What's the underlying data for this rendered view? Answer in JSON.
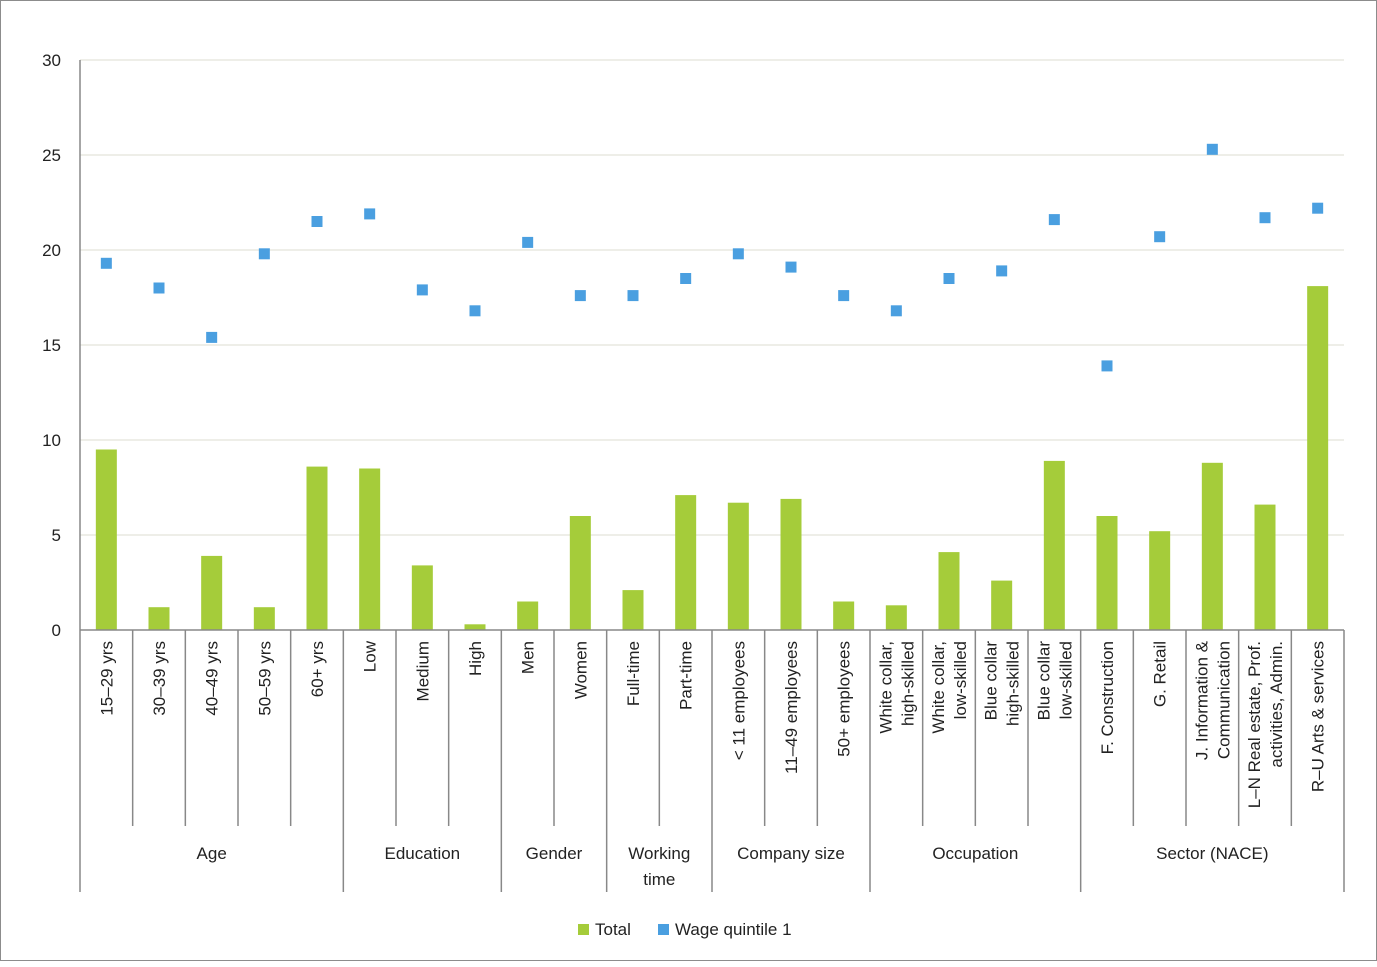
{
  "chart_data": {
    "type": "bar",
    "title": "",
    "xlabel": "",
    "ylabel": "",
    "ylim": [
      0,
      30
    ],
    "yticks": [
      0,
      5,
      10,
      15,
      20,
      25,
      30
    ],
    "grid": true,
    "legend_position": "bottom",
    "categories": [
      [
        "15–29 yrs"
      ],
      [
        "30–39 yrs"
      ],
      [
        "40–49 yrs"
      ],
      [
        "50–59 yrs"
      ],
      [
        "60+ yrs"
      ],
      [
        "Low"
      ],
      [
        "Medium"
      ],
      [
        "High"
      ],
      [
        "Men"
      ],
      [
        "Women"
      ],
      [
        "Full-time"
      ],
      [
        "Part-time"
      ],
      [
        "< 11 employees"
      ],
      [
        "11–49 employees"
      ],
      [
        "50+ employees"
      ],
      [
        "White collar,",
        "high-skilled"
      ],
      [
        "White collar,",
        "low-skilled"
      ],
      [
        "Blue collar",
        "high-skilled"
      ],
      [
        "Blue collar",
        "low-skilled"
      ],
      [
        "F. Construction"
      ],
      [
        "G. Retail"
      ],
      [
        "J. Information &",
        "Communication"
      ],
      [
        "L–N Real estate, Prof.",
        "activities, Admin."
      ],
      [
        "R–U Arts & services"
      ]
    ],
    "groups": [
      {
        "label": [
          "Age"
        ],
        "count": 5
      },
      {
        "label": [
          "Education"
        ],
        "count": 3
      },
      {
        "label": [
          "Gender"
        ],
        "count": 2
      },
      {
        "label": [
          "Working",
          "time"
        ],
        "count": 2
      },
      {
        "label": [
          "Company size"
        ],
        "count": 3
      },
      {
        "label": [
          "Occupation"
        ],
        "count": 4
      },
      {
        "label": [
          "Sector (NACE)"
        ],
        "count": 5
      }
    ],
    "series": [
      {
        "name": "Total",
        "kind": "bar",
        "color": "#a5cc3a",
        "values": [
          9.5,
          1.2,
          3.9,
          1.2,
          8.6,
          8.5,
          3.4,
          0.3,
          1.5,
          6.0,
          2.1,
          7.1,
          6.7,
          6.9,
          1.5,
          1.3,
          4.1,
          2.6,
          8.9,
          6.0,
          5.2,
          8.8,
          6.6,
          18.1
        ]
      },
      {
        "name": "Wage quintile 1",
        "kind": "marker",
        "color": "#4a9fe0",
        "values": [
          19.3,
          18.0,
          15.4,
          19.8,
          21.5,
          21.9,
          17.9,
          16.8,
          20.4,
          17.6,
          17.6,
          18.5,
          19.8,
          19.1,
          17.6,
          16.8,
          18.5,
          18.9,
          21.6,
          13.9,
          20.7,
          25.3,
          21.7,
          22.2
        ]
      }
    ]
  }
}
